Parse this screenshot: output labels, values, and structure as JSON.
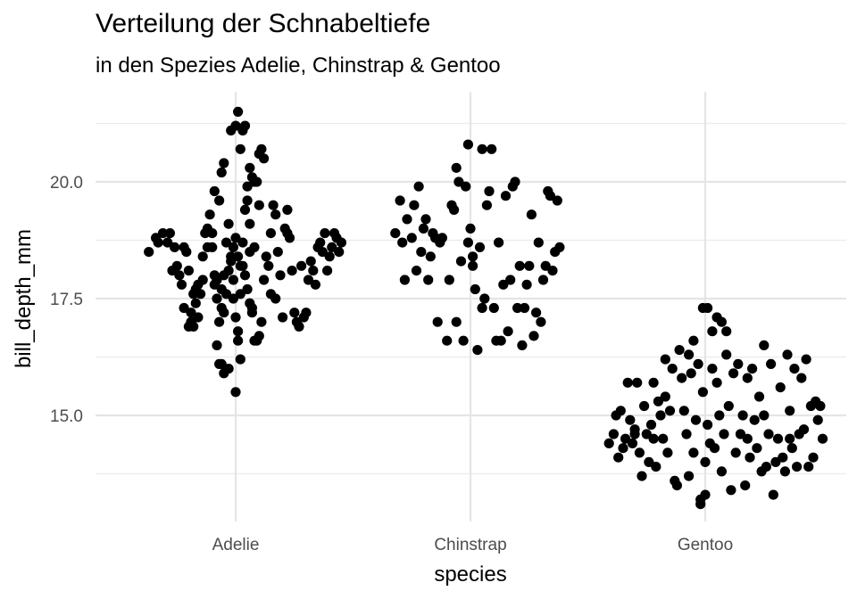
{
  "chart_data": {
    "type": "scatter",
    "title": "Verteilung der Schnabeltiefe",
    "subtitle": "in den Spezies Adelie, Chinstrap & Gentoo",
    "xlabel": "species",
    "ylabel": "bill_depth_mm",
    "categories": [
      "Adelie",
      "Chinstrap",
      "Gentoo"
    ],
    "y_ticks": [
      15.0,
      17.5,
      20.0
    ],
    "y_tick_labels": [
      "15.0",
      "17.5",
      "20.0"
    ],
    "ylim": [
      12.9,
      21.7
    ],
    "grid": true,
    "point_color": "#000000",
    "series": [
      {
        "category": "Adelie",
        "points": [
          [
            -0.37,
            18.5
          ],
          [
            -0.34,
            18.8
          ],
          [
            -0.33,
            18.7
          ],
          [
            -0.31,
            18.9
          ],
          [
            -0.29,
            18.7
          ],
          [
            -0.28,
            18.9
          ],
          [
            -0.27,
            18.1
          ],
          [
            -0.26,
            18.6
          ],
          [
            -0.25,
            18.2
          ],
          [
            -0.24,
            18.0
          ],
          [
            -0.23,
            17.8
          ],
          [
            -0.22,
            18.6
          ],
          [
            -0.21,
            18.5
          ],
          [
            -0.2,
            18.1
          ],
          [
            -0.2,
            16.9
          ],
          [
            -0.19,
            17.0
          ],
          [
            -0.19,
            17.2
          ],
          [
            -0.18,
            16.9
          ],
          [
            -0.17,
            17.4
          ],
          [
            -0.17,
            17.7
          ],
          [
            -0.16,
            17.1
          ],
          [
            -0.15,
            17.6
          ],
          [
            -0.14,
            17.9
          ],
          [
            -0.14,
            18.4
          ],
          [
            -0.13,
            18.9
          ],
          [
            -0.12,
            19.0
          ],
          [
            -0.11,
            19.3
          ],
          [
            -0.1,
            18.6
          ],
          [
            -0.09,
            17.8
          ],
          [
            -0.08,
            17.5
          ],
          [
            -0.07,
            17.0
          ],
          [
            -0.06,
            17.3
          ],
          [
            -0.05,
            18.0
          ],
          [
            -0.04,
            18.7
          ],
          [
            -0.03,
            19.1
          ],
          [
            -0.02,
            18.4
          ],
          [
            -0.01,
            17.9
          ],
          [
            0.0,
            17.1
          ],
          [
            0.01,
            16.6
          ],
          [
            0.01,
            16.8
          ],
          [
            0.02,
            17.6
          ],
          [
            0.03,
            18.2
          ],
          [
            0.04,
            19.4
          ],
          [
            0.05,
            19.6
          ],
          [
            0.06,
            18.5
          ],
          [
            0.07,
            17.2
          ],
          [
            -0.09,
            18.0
          ],
          [
            -0.08,
            17.9
          ],
          [
            -0.06,
            17.7
          ],
          [
            -0.05,
            17.2
          ],
          [
            -0.04,
            17.6
          ],
          [
            -0.03,
            18.1
          ],
          [
            -0.02,
            18.3
          ],
          [
            -0.01,
            18.6
          ],
          [
            0.0,
            18.8
          ],
          [
            0.01,
            18.4
          ],
          [
            0.02,
            18.2
          ],
          [
            0.03,
            18.7
          ],
          [
            0.04,
            18.0
          ],
          [
            -0.08,
            16.5
          ],
          [
            -0.07,
            16.1
          ],
          [
            -0.06,
            16.1
          ],
          [
            -0.05,
            15.9
          ],
          [
            -0.03,
            16.0
          ],
          [
            -0.01,
            17.5
          ],
          [
            0.0,
            15.5
          ],
          [
            0.02,
            16.2
          ],
          [
            0.05,
            17.7
          ],
          [
            0.06,
            17.4
          ],
          [
            0.07,
            17.3
          ],
          [
            0.08,
            18.6
          ],
          [
            0.08,
            16.6
          ],
          [
            0.09,
            16.6
          ],
          [
            0.1,
            16.7
          ],
          [
            0.11,
            17.0
          ],
          [
            0.12,
            17.9
          ],
          [
            0.13,
            18.4
          ],
          [
            0.14,
            18.2
          ],
          [
            0.15,
            17.6
          ],
          [
            0.15,
            18.9
          ],
          [
            0.16,
            19.5
          ],
          [
            0.17,
            19.3
          ],
          [
            0.18,
            18.5
          ],
          [
            0.19,
            18.0
          ],
          [
            0.2,
            17.1
          ],
          [
            0.21,
            19.0
          ],
          [
            0.22,
            18.9
          ],
          [
            0.22,
            19.4
          ],
          [
            0.23,
            18.8
          ],
          [
            0.24,
            18.1
          ],
          [
            0.25,
            17.2
          ],
          [
            0.26,
            17.0
          ],
          [
            0.27,
            16.9
          ],
          [
            0.28,
            18.2
          ],
          [
            0.29,
            17.1
          ],
          [
            0.3,
            17.2
          ],
          [
            0.31,
            17.9
          ],
          [
            0.32,
            18.3
          ],
          [
            0.33,
            18.1
          ],
          [
            0.34,
            17.8
          ],
          [
            0.35,
            18.6
          ],
          [
            0.36,
            18.7
          ],
          [
            0.37,
            18.5
          ],
          [
            0.38,
            18.9
          ],
          [
            0.39,
            18.1
          ],
          [
            0.4,
            18.4
          ],
          [
            0.41,
            18.6
          ],
          [
            0.42,
            18.9
          ],
          [
            0.43,
            18.8
          ],
          [
            0.44,
            18.5
          ],
          [
            0.45,
            18.7
          ],
          [
            -0.02,
            21.1
          ],
          [
            0.0,
            21.2
          ],
          [
            0.01,
            21.5
          ],
          [
            0.02,
            20.7
          ],
          [
            0.03,
            21.1
          ],
          [
            0.04,
            21.2
          ],
          [
            0.06,
            20.3
          ],
          [
            0.07,
            20.1
          ],
          [
            0.08,
            20.0
          ],
          [
            0.09,
            20.0
          ],
          [
            0.1,
            20.6
          ],
          [
            0.11,
            20.7
          ],
          [
            0.12,
            20.5
          ],
          [
            -0.09,
            19.8
          ],
          [
            -0.07,
            19.6
          ],
          [
            -0.06,
            20.2
          ],
          [
            -0.05,
            20.4
          ],
          [
            0.05,
            19.9
          ],
          [
            -0.1,
            18.9
          ],
          [
            -0.12,
            18.6
          ],
          [
            -0.18,
            17.6
          ],
          [
            -0.22,
            17.3
          ],
          [
            -0.16,
            17.8
          ],
          [
            0.06,
            19.1
          ],
          [
            0.1,
            19.5
          ],
          [
            0.17,
            17.5
          ]
        ]
      },
      {
        "category": "Chinstrap",
        "points": [
          [
            -0.32,
            18.9
          ],
          [
            -0.3,
            19.6
          ],
          [
            -0.29,
            18.7
          ],
          [
            -0.28,
            17.9
          ],
          [
            -0.27,
            19.2
          ],
          [
            -0.25,
            18.8
          ],
          [
            -0.24,
            19.5
          ],
          [
            -0.23,
            18.1
          ],
          [
            -0.22,
            19.9
          ],
          [
            -0.21,
            18.5
          ],
          [
            -0.2,
            19.0
          ],
          [
            -0.19,
            19.2
          ],
          [
            -0.18,
            17.9
          ],
          [
            -0.17,
            18.4
          ],
          [
            -0.16,
            18.9
          ],
          [
            -0.15,
            18.8
          ],
          [
            -0.14,
            17.0
          ],
          [
            -0.13,
            18.7
          ],
          [
            -0.12,
            18.8
          ],
          [
            -0.1,
            16.6
          ],
          [
            -0.09,
            17.9
          ],
          [
            -0.08,
            19.5
          ],
          [
            -0.07,
            19.4
          ],
          [
            -0.06,
            20.3
          ],
          [
            -0.05,
            20.0
          ],
          [
            -0.04,
            18.3
          ],
          [
            -0.03,
            16.6
          ],
          [
            -0.02,
            19.9
          ],
          [
            -0.01,
            18.7
          ],
          [
            0.0,
            19.0
          ],
          [
            0.01,
            18.2
          ],
          [
            0.02,
            17.7
          ],
          [
            0.03,
            16.4
          ],
          [
            0.04,
            18.6
          ],
          [
            0.05,
            17.3
          ],
          [
            0.06,
            17.5
          ],
          [
            0.07,
            19.5
          ],
          [
            0.08,
            19.8
          ],
          [
            0.09,
            20.7
          ],
          [
            0.1,
            17.3
          ],
          [
            0.11,
            16.6
          ],
          [
            0.12,
            18.7
          ],
          [
            0.13,
            16.6
          ],
          [
            0.14,
            17.8
          ],
          [
            0.15,
            19.7
          ],
          [
            0.16,
            16.8
          ],
          [
            0.17,
            17.9
          ],
          [
            0.18,
            19.9
          ],
          [
            0.19,
            20.0
          ],
          [
            0.2,
            17.3
          ],
          [
            0.21,
            18.2
          ],
          [
            0.22,
            16.5
          ],
          [
            0.23,
            17.3
          ],
          [
            0.24,
            17.8
          ],
          [
            0.25,
            18.2
          ],
          [
            0.26,
            19.3
          ],
          [
            0.27,
            16.7
          ],
          [
            0.28,
            17.2
          ],
          [
            0.29,
            18.7
          ],
          [
            0.3,
            17.0
          ],
          [
            0.31,
            17.9
          ],
          [
            0.32,
            18.2
          ],
          [
            0.33,
            19.8
          ],
          [
            0.34,
            19.7
          ],
          [
            0.35,
            18.1
          ],
          [
            0.36,
            18.5
          ],
          [
            0.37,
            19.6
          ],
          [
            0.38,
            18.6
          ],
          [
            -0.01,
            20.8
          ],
          [
            0.05,
            20.7
          ],
          [
            0.01,
            18.4
          ],
          [
            -0.06,
            17.0
          ]
        ]
      },
      {
        "category": "Gentoo",
        "points": [
          [
            -0.41,
            14.4
          ],
          [
            -0.39,
            14.6
          ],
          [
            -0.38,
            15.0
          ],
          [
            -0.37,
            14.1
          ],
          [
            -0.36,
            15.1
          ],
          [
            -0.35,
            14.3
          ],
          [
            -0.34,
            14.5
          ],
          [
            -0.33,
            15.7
          ],
          [
            -0.32,
            14.9
          ],
          [
            -0.31,
            14.4
          ],
          [
            -0.3,
            14.6
          ],
          [
            -0.29,
            15.7
          ],
          [
            -0.28,
            14.2
          ],
          [
            -0.27,
            13.7
          ],
          [
            -0.26,
            15.2
          ],
          [
            -0.25,
            14.6
          ],
          [
            -0.24,
            14.0
          ],
          [
            -0.23,
            14.8
          ],
          [
            -0.22,
            15.7
          ],
          [
            -0.21,
            13.9
          ],
          [
            -0.2,
            15.3
          ],
          [
            -0.19,
            15.0
          ],
          [
            -0.18,
            14.5
          ],
          [
            -0.17,
            15.4
          ],
          [
            -0.16,
            14.2
          ],
          [
            -0.15,
            15.1
          ],
          [
            -0.14,
            16.0
          ],
          [
            -0.13,
            13.6
          ],
          [
            -0.12,
            13.5
          ],
          [
            -0.11,
            16.4
          ],
          [
            -0.1,
            15.8
          ],
          [
            -0.09,
            15.1
          ],
          [
            -0.08,
            14.6
          ],
          [
            -0.07,
            13.7
          ],
          [
            -0.06,
            15.9
          ],
          [
            -0.05,
            14.2
          ],
          [
            -0.04,
            14.9
          ],
          [
            -0.03,
            16.1
          ],
          [
            -0.02,
            13.1
          ],
          [
            -0.01,
            15.5
          ],
          [
            0.0,
            13.3
          ],
          [
            0.01,
            14.8
          ],
          [
            0.02,
            14.4
          ],
          [
            0.03,
            16.0
          ],
          [
            0.04,
            14.3
          ],
          [
            0.05,
            15.7
          ],
          [
            0.06,
            15.0
          ],
          [
            0.07,
            13.8
          ],
          [
            0.08,
            14.6
          ],
          [
            0.09,
            16.3
          ],
          [
            0.1,
            15.2
          ],
          [
            0.11,
            13.4
          ],
          [
            0.12,
            15.9
          ],
          [
            0.13,
            14.2
          ],
          [
            0.14,
            16.1
          ],
          [
            0.15,
            14.6
          ],
          [
            0.16,
            15.0
          ],
          [
            0.17,
            13.5
          ],
          [
            0.18,
            15.8
          ],
          [
            0.19,
            14.1
          ],
          [
            0.2,
            16.0
          ],
          [
            0.21,
            14.9
          ],
          [
            0.22,
            14.3
          ],
          [
            0.23,
            15.4
          ],
          [
            0.24,
            13.8
          ],
          [
            0.25,
            15.0
          ],
          [
            0.26,
            13.9
          ],
          [
            0.27,
            14.6
          ],
          [
            0.28,
            16.1
          ],
          [
            0.29,
            13.3
          ],
          [
            0.3,
            14.0
          ],
          [
            0.31,
            14.5
          ],
          [
            0.32,
            15.6
          ],
          [
            0.33,
            14.1
          ],
          [
            0.34,
            13.8
          ],
          [
            0.35,
            16.3
          ],
          [
            0.36,
            15.1
          ],
          [
            0.37,
            14.3
          ],
          [
            0.38,
            16.0
          ],
          [
            0.39,
            13.9
          ],
          [
            0.4,
            14.6
          ],
          [
            0.41,
            15.8
          ],
          [
            0.42,
            14.7
          ],
          [
            0.43,
            16.2
          ],
          [
            0.44,
            13.9
          ],
          [
            0.45,
            15.2
          ],
          [
            0.46,
            14.1
          ],
          [
            0.47,
            15.3
          ],
          [
            0.48,
            14.9
          ],
          [
            0.49,
            15.2
          ],
          [
            0.5,
            14.5
          ],
          [
            -0.01,
            17.3
          ],
          [
            0.01,
            17.3
          ],
          [
            0.03,
            16.8
          ],
          [
            0.05,
            17.1
          ],
          [
            0.07,
            17.0
          ],
          [
            -0.05,
            16.6
          ],
          [
            0.09,
            16.8
          ],
          [
            -0.17,
            16.2
          ],
          [
            -0.02,
            13.2
          ],
          [
            0.0,
            14.0
          ],
          [
            -0.22,
            14.5
          ],
          [
            0.18,
            14.5
          ],
          [
            -0.3,
            14.7
          ],
          [
            0.36,
            14.5
          ],
          [
            0.25,
            16.5
          ],
          [
            -0.07,
            16.3
          ]
        ]
      }
    ]
  }
}
